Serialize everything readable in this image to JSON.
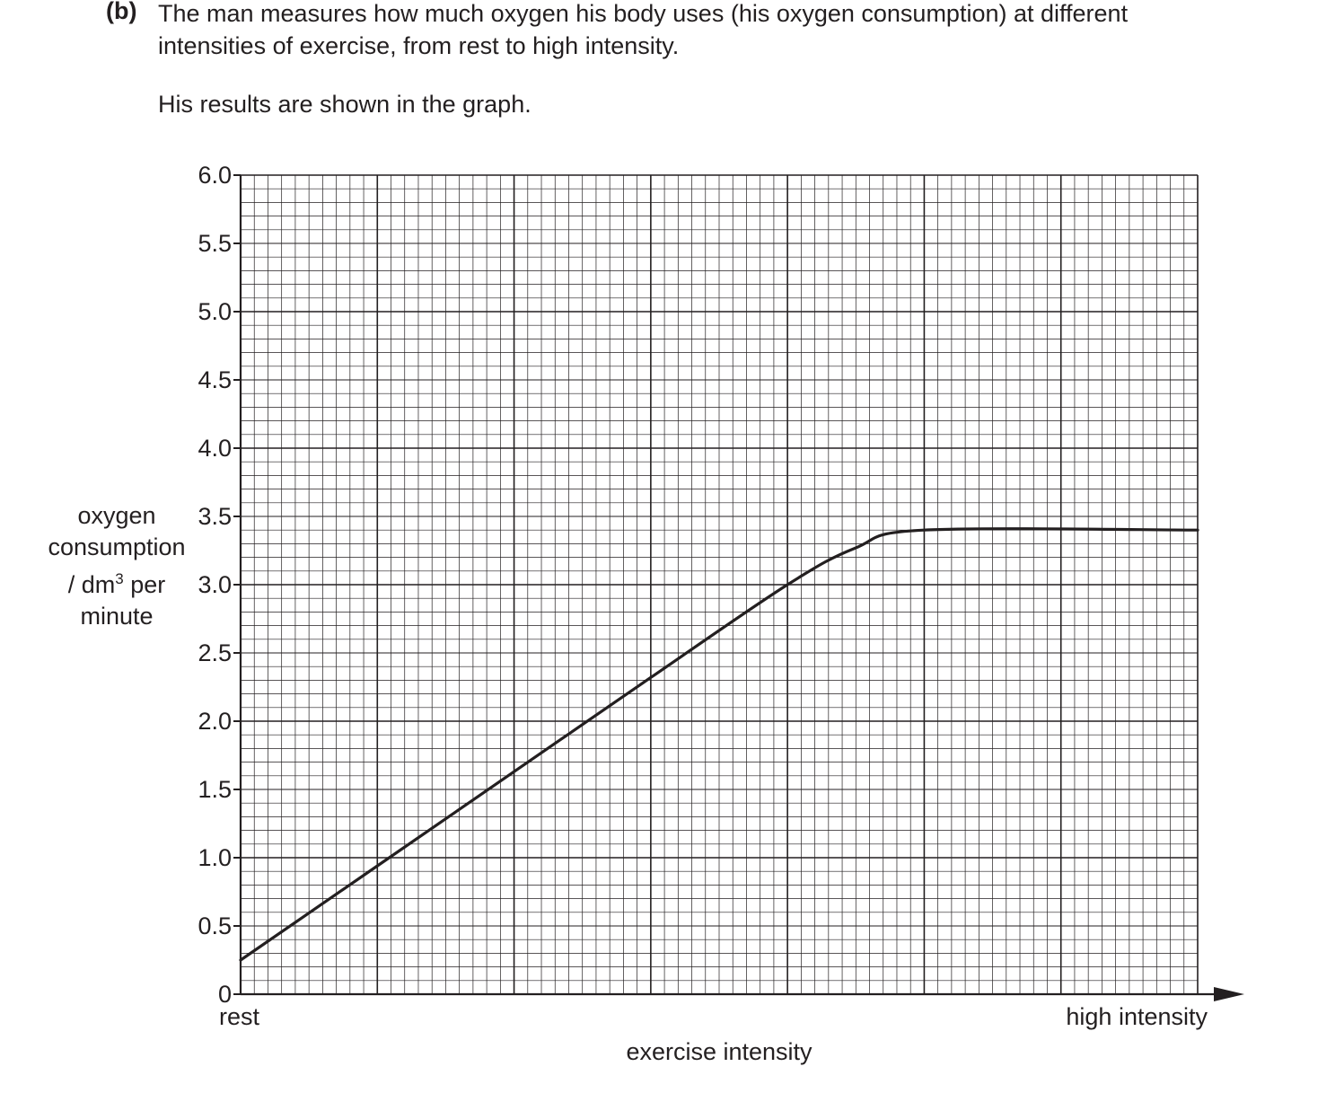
{
  "question": {
    "label": "(b)",
    "line1": "The man measures how much oxygen his body uses (his oxygen consumption) at different",
    "line2": "intensities of exercise, from rest to high intensity.",
    "results_text": "His results are shown in the graph."
  },
  "chart_data": {
    "type": "line",
    "title": "",
    "xlabel": "exercise intensity",
    "x_tick_start": "rest",
    "x_tick_end": "high intensity",
    "ylabel_lines": [
      "oxygen",
      "consumption",
      "/ dm",
      "3",
      " per",
      "minute"
    ],
    "ylim": [
      0,
      6.0
    ],
    "yticks": [
      "0",
      "0.5",
      "1.0",
      "1.5",
      "2.0",
      "2.5",
      "3.0",
      "3.5",
      "4.0",
      "4.5",
      "5.0",
      "5.5",
      "6.0"
    ],
    "x_range": [
      0,
      7
    ],
    "x_axis_note": "x values are relative exercise intensity in units of the major gridlines (0 = rest, 7 = high intensity); the axis has no numeric labels",
    "grid": true,
    "series": [
      {
        "x": [
          0,
          1,
          2,
          3,
          4,
          4.5,
          5,
          7
        ],
        "y": [
          0.25,
          0.94,
          1.63,
          2.32,
          3.0,
          3.27,
          3.4,
          3.4
        ]
      }
    ]
  }
}
